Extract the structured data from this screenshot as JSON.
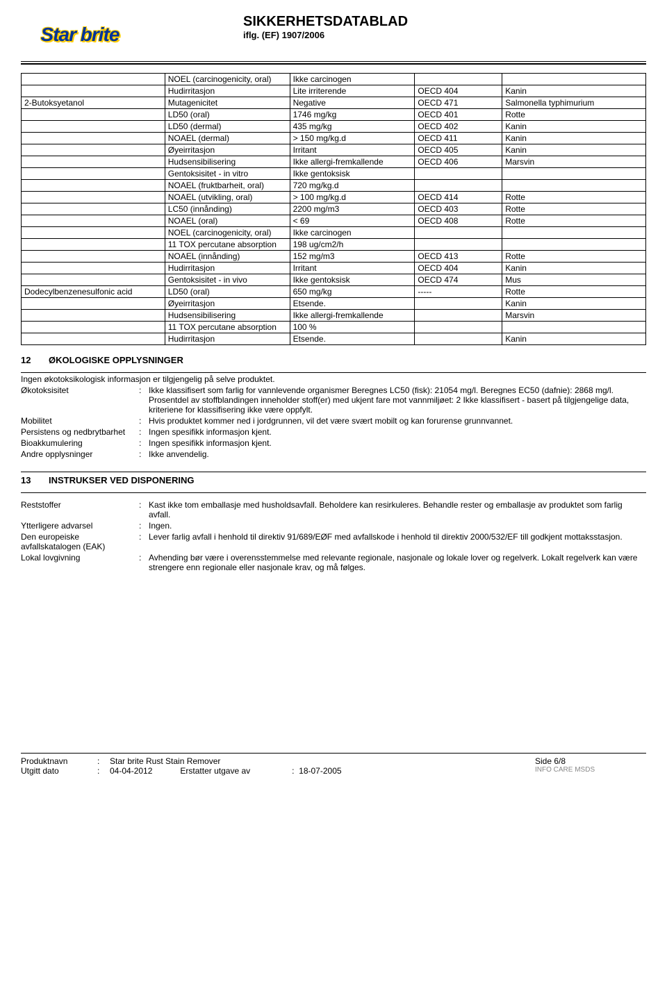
{
  "header": {
    "logo_text": "Star brite",
    "title": "SIKKERHETSDATABLAD",
    "subtitle": "iflg. (EF) 1907/2006"
  },
  "tox_table": {
    "rows": [
      [
        "",
        "NOEL (carcinogenicity, oral)",
        "Ikke carcinogen",
        "",
        ""
      ],
      [
        "",
        "Hudirritasjon",
        "Lite irriterende",
        "OECD 404",
        "Kanin"
      ],
      [
        "2-Butoksyetanol",
        "Mutagenicitet",
        "Negative",
        "OECD 471",
        "Salmonella typhimurium"
      ],
      [
        "",
        "LD50 (oral)",
        "1746 mg/kg",
        "OECD 401",
        "Rotte"
      ],
      [
        "",
        "LD50 (dermal)",
        "435 mg/kg",
        "OECD 402",
        "Kanin"
      ],
      [
        "",
        "NOAEL (dermal)",
        "> 150 mg/kg.d",
        "OECD 411",
        "Kanin"
      ],
      [
        "",
        "Øyeirritasjon",
        "Irritant",
        "OECD 405",
        "Kanin"
      ],
      [
        "",
        "Hudsensibilisering",
        "Ikke allergi-fremkallende",
        "OECD 406",
        "Marsvin"
      ],
      [
        "",
        "Gentoksisitet - in vitro",
        "Ikke gentoksisk",
        "",
        ""
      ],
      [
        "",
        "NOAEL (fruktbarheit, oral)",
        "720 mg/kg.d",
        "",
        ""
      ],
      [
        "",
        "NOAEL (utvikling, oral)",
        "> 100 mg/kg.d",
        "OECD 414",
        "Rotte"
      ],
      [
        "",
        "LC50 (innånding)",
        "2200 mg/m3",
        "OECD 403",
        "Rotte"
      ],
      [
        "",
        "NOAEL (oral)",
        "< 69",
        "OECD 408",
        "Rotte"
      ],
      [
        "",
        "NOEL (carcinogenicity, oral)",
        "Ikke carcinogen",
        "",
        ""
      ],
      [
        "",
        "11 TOX percutane absorption",
        "198 ug/cm2/h",
        "",
        ""
      ],
      [
        "",
        "NOAEL (innånding)",
        "152 mg/m3",
        "OECD 413",
        "Rotte"
      ],
      [
        "",
        "Hudirritasjon",
        "Irritant",
        "OECD 404",
        "Kanin"
      ],
      [
        "",
        "Gentoksisitet - in vivo",
        "Ikke gentoksisk",
        "OECD 474",
        "Mus"
      ],
      [
        "Dodecylbenzenesulfonic acid",
        "LD50 (oral)",
        "650 mg/kg",
        "-----",
        "Rotte"
      ],
      [
        "",
        "Øyeirritasjon",
        "Etsende.",
        "",
        "Kanin"
      ],
      [
        "",
        "Hudsensibilisering",
        "Ikke allergi-fremkallende",
        "",
        "Marsvin"
      ],
      [
        "",
        "11 TOX percutane absorption",
        "100 %",
        "",
        ""
      ],
      [
        "",
        "Hudirritasjon",
        "Etsende.",
        "",
        "Kanin"
      ]
    ]
  },
  "section12": {
    "num": "12",
    "title": "ØKOLOGISKE OPPLYSNINGER",
    "intro": "Ingen økotoksikologisk informasjon er tilgjengelig på selve produktet.",
    "okotoksisitet_k": "Økotoksisitet",
    "okotoksisitet_v": "Ikke klassifisert som farlig for vannlevende organismer Beregnes LC50 (fisk): 21054 mg/l. Beregnes EC50 (dafnie): 2868 mg/l. Prosentdel av stoffblandingen inneholder stoff(er) med ukjent fare mot vannmiljøet: 2   Ikke klassifisert - basert på tilgjengelige data, kriteriene for klassifisering ikke være oppfylt.",
    "mobilitet_k": "Mobilitet",
    "mobilitet_v": "Hvis produktet kommer ned i jordgrunnen, vil det være svært mobilt og kan forurense grunnvannet.",
    "persistens_k": "Persistens og nedbrytbarhet",
    "persistens_v": "Ingen spesifikk informasjon kjent.",
    "bioakk_k": "Bioakkumulering",
    "bioakk_v": "Ingen spesifikk informasjon kjent.",
    "andre_k": "Andre opplysninger",
    "andre_v": "Ikke anvendelig."
  },
  "section13": {
    "num": "13",
    "title": "INSTRUKSER VED DISPONERING",
    "rest_k": "Reststoffer",
    "rest_v": "Kast ikke tom emballasje med husholdsavfall. Beholdere kan resirkuleres. Behandle rester og emballasje av produktet som farlig avfall.",
    "ytt_k": "Ytterligere advarsel",
    "ytt_v": "Ingen.",
    "eak_k": "Den europeiske avfallskatalogen (EAK)",
    "eak_v": "Lever farlig avfall i henhold til direktiv 91/689/EØF med avfallskode i henhold til direktiv 2000/532/EF  till godkjent mottaksstasjon.",
    "lokal_k": "Lokal lovgivning",
    "lokal_v": "Avhending bør være i overensstemmelse med relevante regionale, nasjonale og lokale lover og regelverk. Lokalt regelverk kan være strengere enn regionale eller nasjonale krav, og må følges."
  },
  "footer": {
    "produktnavn_k": "Produktnavn",
    "produktnavn_v": "Star brite Rust Stain Remover",
    "side": "Side 6/8",
    "utgitt_k": "Utgitt dato",
    "utgitt_v": "04-04-2012",
    "erstatter_k": "Erstatter utgave av",
    "erstatter_colon": ":",
    "erstatter_v": "18-07-2005",
    "info_care": "INFO CARE MSDS"
  }
}
